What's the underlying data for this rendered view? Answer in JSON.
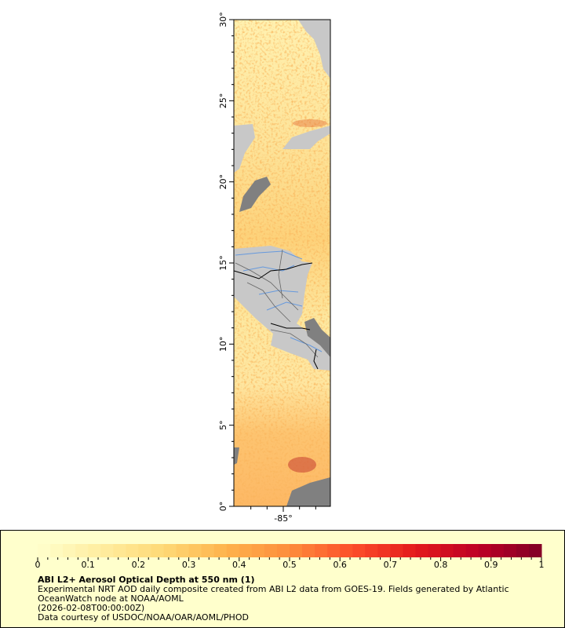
{
  "map": {
    "lat_labels": [
      "0°",
      "5°",
      "10°",
      "15°",
      "20°",
      "25°",
      "30°"
    ],
    "lat_values": [
      0,
      5,
      10,
      15,
      20,
      25,
      30
    ],
    "lon_labels": [
      "-85°"
    ],
    "lon_values": [
      -85
    ],
    "lat_range": [
      0,
      30
    ],
    "colors": {
      "land": "#c8c8c8",
      "nodata": "#808080",
      "rivers": "#6699dd",
      "borders": "#000000"
    }
  },
  "legend": {
    "ticks": [
      "0",
      "0.1",
      "0.2",
      "0.3",
      "0.4",
      "0.5",
      "0.6",
      "0.7",
      "0.8",
      "0.9",
      "1"
    ],
    "range": [
      0,
      1
    ],
    "palette": [
      "#ffffcc",
      "#ffeda0",
      "#fed976",
      "#feb24c",
      "#fd8d3c",
      "#fc4e2a",
      "#e31a1c",
      "#bd0026",
      "#800026"
    ],
    "title": "ABI L2+ Aerosol Optical Depth at 550 nm (1)",
    "line1": "Experimental NRT AOD daily composite created from ABI L2 data from GOES-19. Fields generated by Atlantic",
    "line2": "OceanWatch node at NOAA/AOML",
    "line3": "(2026-02-08T00:00:00Z)",
    "line4": "Data courtesy of USDOC/NOAA/OAR/AOML/PHOD"
  }
}
